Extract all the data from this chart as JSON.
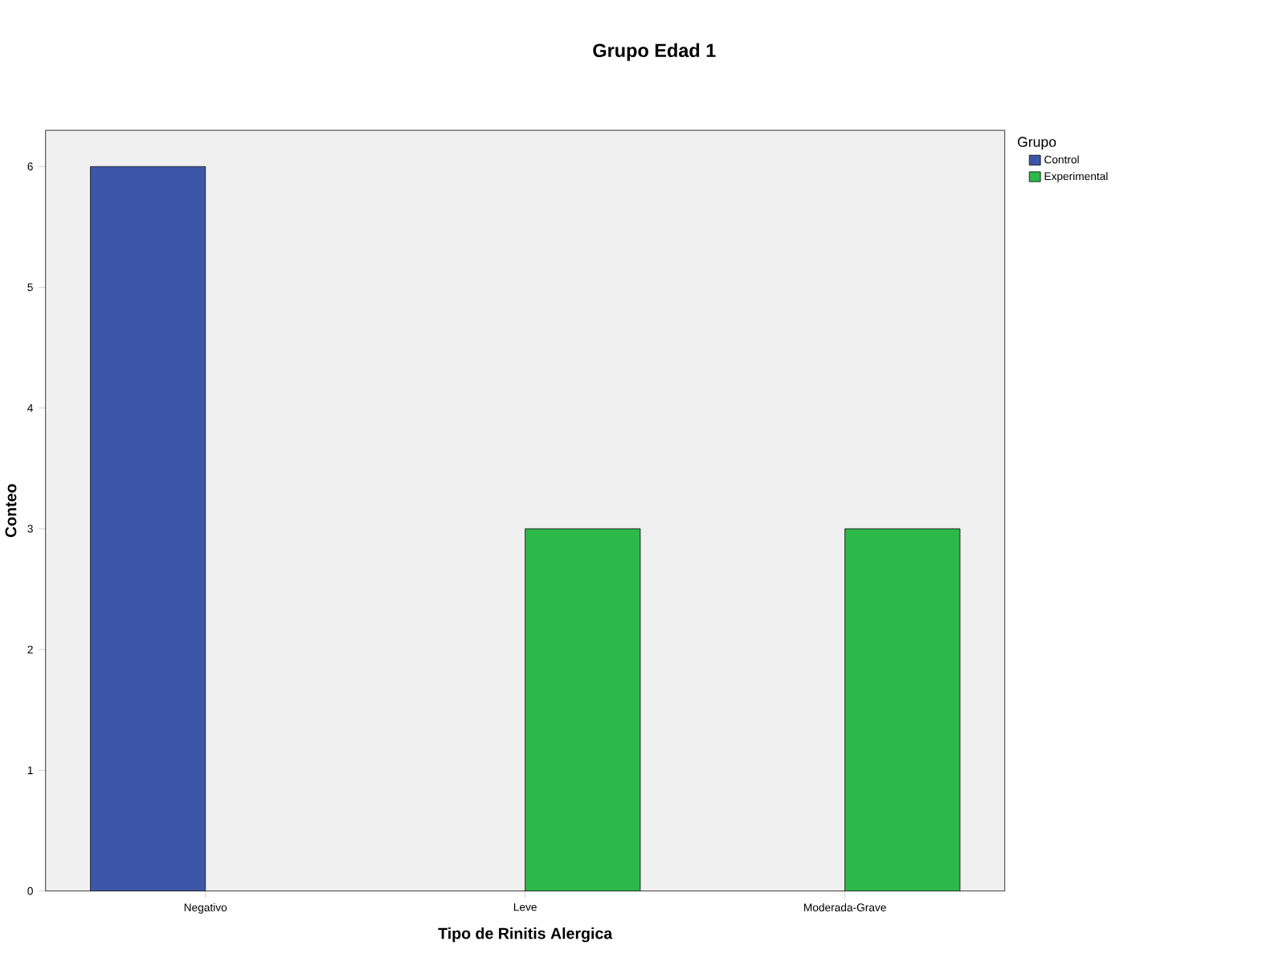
{
  "chart_data": {
    "type": "bar",
    "title": "Grupo Edad 1",
    "xlabel": "Tipo de Rinitis Alergica",
    "ylabel": "Conteo",
    "legend_title": "Grupo",
    "categories": [
      "Negativo",
      "Leve",
      "Moderada-Grave"
    ],
    "series": [
      {
        "name": "Control",
        "color": "#3d56a8",
        "values": [
          6,
          null,
          null
        ]
      },
      {
        "name": "Experimental",
        "color": "#2db84a",
        "values": [
          null,
          3,
          3
        ]
      }
    ],
    "ylim": [
      0,
      6.3
    ],
    "yticks": [
      0,
      1,
      2,
      3,
      4,
      5,
      6
    ],
    "grid": false,
    "legend": "top right"
  }
}
